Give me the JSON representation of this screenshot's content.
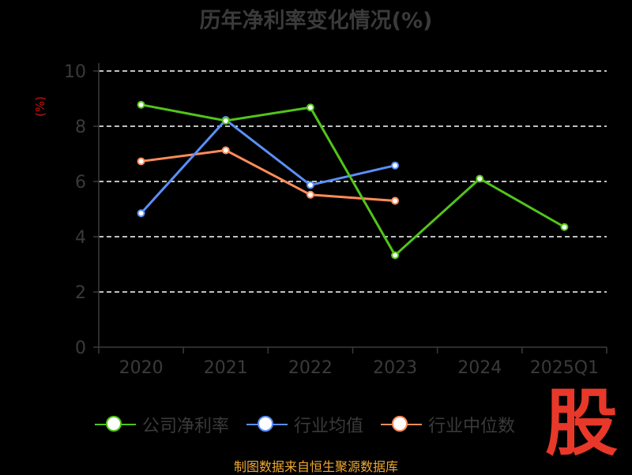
{
  "title": "历年净利率变化情况(%)",
  "source_text": "制图数据来自恒生聚源数据库",
  "logo_text": "股",
  "legend": [
    {
      "label": "公司净利率",
      "color": "#52c41a"
    },
    {
      "label": "行业均值",
      "color": "#5b8ff9"
    },
    {
      "label": "行业中位数",
      "color": "#ff8c5a"
    }
  ],
  "colors": {
    "axis_text": "#3a3a3a",
    "grid": "#ffffff",
    "ylabel": "#d01010",
    "source": "#f0a830",
    "logo": "#e8382a"
  },
  "chart_data": {
    "type": "line",
    "title": "历年净利率变化情况(%)",
    "ylabel": "(%)",
    "xlabel": "",
    "categories": [
      "2020",
      "2021",
      "2022",
      "2023",
      "2024",
      "2025Q1"
    ],
    "ylim": [
      0,
      10
    ],
    "yticks": [
      0,
      2,
      4,
      6,
      8,
      10
    ],
    "grid": true,
    "legend_position": "bottom",
    "series": [
      {
        "name": "公司净利率",
        "color": "#52c41a",
        "values": [
          8.78,
          8.2,
          8.68,
          3.33,
          6.1,
          4.35
        ]
      },
      {
        "name": "行业均值",
        "color": "#5b8ff9",
        "values": [
          4.85,
          8.23,
          5.87,
          6.58,
          null,
          null
        ]
      },
      {
        "name": "行业中位数",
        "color": "#ff8c5a",
        "values": [
          6.73,
          7.13,
          5.52,
          5.3,
          null,
          null
        ]
      }
    ]
  }
}
